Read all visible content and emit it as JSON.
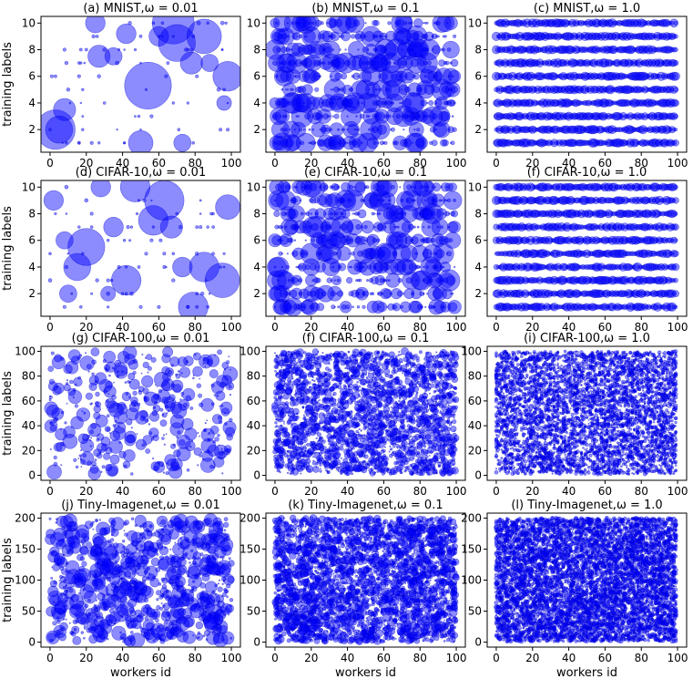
{
  "figure": {
    "xlabel": "workers id",
    "ylabel": "training labels"
  },
  "chart_data": [
    {
      "type": "scatter",
      "title": "(a) MNIST,ω = 0.01",
      "dataset": "MNIST",
      "omega": 0.01,
      "xlim": [
        -5,
        105
      ],
      "ylim": [
        0.3,
        10.5
      ],
      "xticks": [
        0,
        20,
        40,
        60,
        80,
        100
      ],
      "yticks": [
        2,
        4,
        6,
        8,
        10
      ],
      "num_labels": 10,
      "num_workers": 100,
      "xlabel": "",
      "ylabel": "training labels",
      "x": [
        3,
        8,
        25,
        27,
        35,
        42,
        50,
        54,
        60,
        68,
        70,
        73,
        78,
        85,
        98,
        5,
        88,
        96
      ],
      "y": [
        2,
        3.5,
        10,
        7.5,
        7.5,
        9.2,
        1,
        5.3,
        9,
        10,
        8.5,
        1,
        7,
        9,
        6,
        2,
        7,
        4
      ],
      "size": [
        3.2,
        1.8,
        1.6,
        1.8,
        1.4,
        1.6,
        2,
        3.8,
        1.6,
        3.4,
        3,
        1.4,
        1.8,
        2.8,
        2.4,
        2.2,
        1.4,
        1.2
      ]
    },
    {
      "type": "scatter",
      "title": "(b) MNIST,ω = 0.1",
      "dataset": "MNIST",
      "omega": 0.1,
      "xlim": [
        -5,
        105
      ],
      "ylim": [
        0.3,
        10.5
      ],
      "xticks": [
        0,
        20,
        40,
        60,
        80,
        100
      ],
      "yticks": [
        2,
        4,
        6,
        8,
        10
      ],
      "num_labels": 10,
      "num_workers": 100,
      "xlabel": "",
      "ylabel": ""
    },
    {
      "type": "scatter",
      "title": "(c) MNIST,ω = 1.0",
      "dataset": "MNIST",
      "omega": 1.0,
      "xlim": [
        -5,
        105
      ],
      "ylim": [
        0.3,
        10.5
      ],
      "xticks": [
        0,
        20,
        40,
        60,
        80,
        100
      ],
      "yticks": [
        2,
        4,
        6,
        8,
        10
      ],
      "num_labels": 10,
      "num_workers": 100,
      "xlabel": "",
      "ylabel": ""
    },
    {
      "type": "scatter",
      "title": "(d) CIFAR-10,ω = 0.01",
      "dataset": "CIFAR-10",
      "omega": 0.01,
      "xlim": [
        -5,
        105
      ],
      "ylim": [
        0.3,
        10.5
      ],
      "xticks": [
        0,
        20,
        40,
        60,
        80,
        100
      ],
      "yticks": [
        2,
        4,
        6,
        8,
        10
      ],
      "num_labels": 10,
      "num_workers": 100,
      "xlabel": "",
      "ylabel": "training labels",
      "x": [
        2,
        8,
        15,
        20,
        28,
        32,
        42,
        47,
        57,
        63,
        67,
        73,
        79,
        85,
        95,
        98,
        10,
        35
      ],
      "y": [
        9,
        6,
        4,
        5.5,
        10,
        2,
        3,
        10,
        7.5,
        9,
        7,
        4,
        1,
        4,
        3,
        8.5,
        2,
        7
      ],
      "size": [
        1.6,
        1.4,
        2.2,
        3,
        1.6,
        1.2,
        2.4,
        2.4,
        2.4,
        3.2,
        1.8,
        1.6,
        2.4,
        2.4,
        2.8,
        2,
        1.4,
        1.6
      ]
    },
    {
      "type": "scatter",
      "title": "(e) CIFAR-10,ω = 0.1",
      "dataset": "CIFAR-10",
      "omega": 0.1,
      "xlim": [
        -5,
        105
      ],
      "ylim": [
        0.3,
        10.5
      ],
      "xticks": [
        0,
        20,
        40,
        60,
        80,
        100
      ],
      "yticks": [
        2,
        4,
        6,
        8,
        10
      ],
      "num_labels": 10,
      "num_workers": 100,
      "xlabel": "",
      "ylabel": ""
    },
    {
      "type": "scatter",
      "title": "(f) CIFAR-10,ω = 1.0",
      "dataset": "CIFAR-10",
      "omega": 1.0,
      "xlim": [
        -5,
        105
      ],
      "ylim": [
        0.3,
        10.5
      ],
      "xticks": [
        0,
        20,
        40,
        60,
        80,
        100
      ],
      "yticks": [
        2,
        4,
        6,
        8,
        10
      ],
      "num_labels": 10,
      "num_workers": 100,
      "xlabel": "",
      "ylabel": ""
    },
    {
      "type": "scatter",
      "title": "(g) CIFAR-100,ω = 0.01",
      "dataset": "CIFAR-100",
      "omega": 0.01,
      "xlim": [
        -5,
        105
      ],
      "ylim": [
        -4,
        104
      ],
      "xticks": [
        0,
        20,
        40,
        60,
        80,
        100
      ],
      "yticks": [
        0,
        20,
        40,
        60,
        80,
        100
      ],
      "num_labels": 100,
      "num_workers": 100,
      "xlabel": "",
      "ylabel": "training labels"
    },
    {
      "type": "scatter",
      "title": "(f) CIFAR-100,ω = 0.1",
      "dataset": "CIFAR-100",
      "omega": 0.1,
      "xlim": [
        -5,
        105
      ],
      "ylim": [
        -4,
        104
      ],
      "xticks": [
        0,
        20,
        40,
        60,
        80,
        100
      ],
      "yticks": [
        0,
        20,
        40,
        60,
        80,
        100
      ],
      "num_labels": 100,
      "num_workers": 100,
      "xlabel": "",
      "ylabel": ""
    },
    {
      "type": "scatter",
      "title": "(i) CIFAR-100,ω = 1.0",
      "dataset": "CIFAR-100",
      "omega": 1.0,
      "xlim": [
        -5,
        105
      ],
      "ylim": [
        -4,
        104
      ],
      "xticks": [
        0,
        20,
        40,
        60,
        80,
        100
      ],
      "yticks": [
        0,
        20,
        40,
        60,
        80,
        100
      ],
      "num_labels": 100,
      "num_workers": 100,
      "xlabel": "",
      "ylabel": ""
    },
    {
      "type": "scatter",
      "title": "(j) Tiny-Imagenet,ω = 0.01",
      "dataset": "Tiny-Imagenet",
      "omega": 0.01,
      "xlim": [
        -5,
        105
      ],
      "ylim": [
        -8,
        208
      ],
      "xticks": [
        0,
        20,
        40,
        60,
        80,
        100
      ],
      "yticks": [
        0,
        50,
        100,
        150,
        200
      ],
      "num_labels": 200,
      "num_workers": 100,
      "xlabel": "workers id",
      "ylabel": "training labels"
    },
    {
      "type": "scatter",
      "title": "(k) Tiny-Imagenet,ω = 0.1",
      "dataset": "Tiny-Imagenet",
      "omega": 0.1,
      "xlim": [
        -5,
        105
      ],
      "ylim": [
        -8,
        208
      ],
      "xticks": [
        0,
        20,
        40,
        60,
        80,
        100
      ],
      "yticks": [
        0,
        50,
        100,
        150,
        200
      ],
      "num_labels": 200,
      "num_workers": 100,
      "xlabel": "workers id",
      "ylabel": ""
    },
    {
      "type": "scatter",
      "title": "(l) Tiny-Imagenet,ω = 1.0",
      "dataset": "Tiny-Imagenet",
      "omega": 1.0,
      "xlim": [
        -5,
        105
      ],
      "ylim": [
        -8,
        208
      ],
      "xticks": [
        0,
        20,
        40,
        60,
        80,
        100
      ],
      "yticks": [
        0,
        50,
        100,
        150,
        200
      ],
      "num_labels": 200,
      "num_workers": 100,
      "xlabel": "workers id",
      "ylabel": ""
    }
  ],
  "colors": {
    "marker": "#0000ff",
    "background": "#ffffff",
    "axis": "#000000"
  }
}
